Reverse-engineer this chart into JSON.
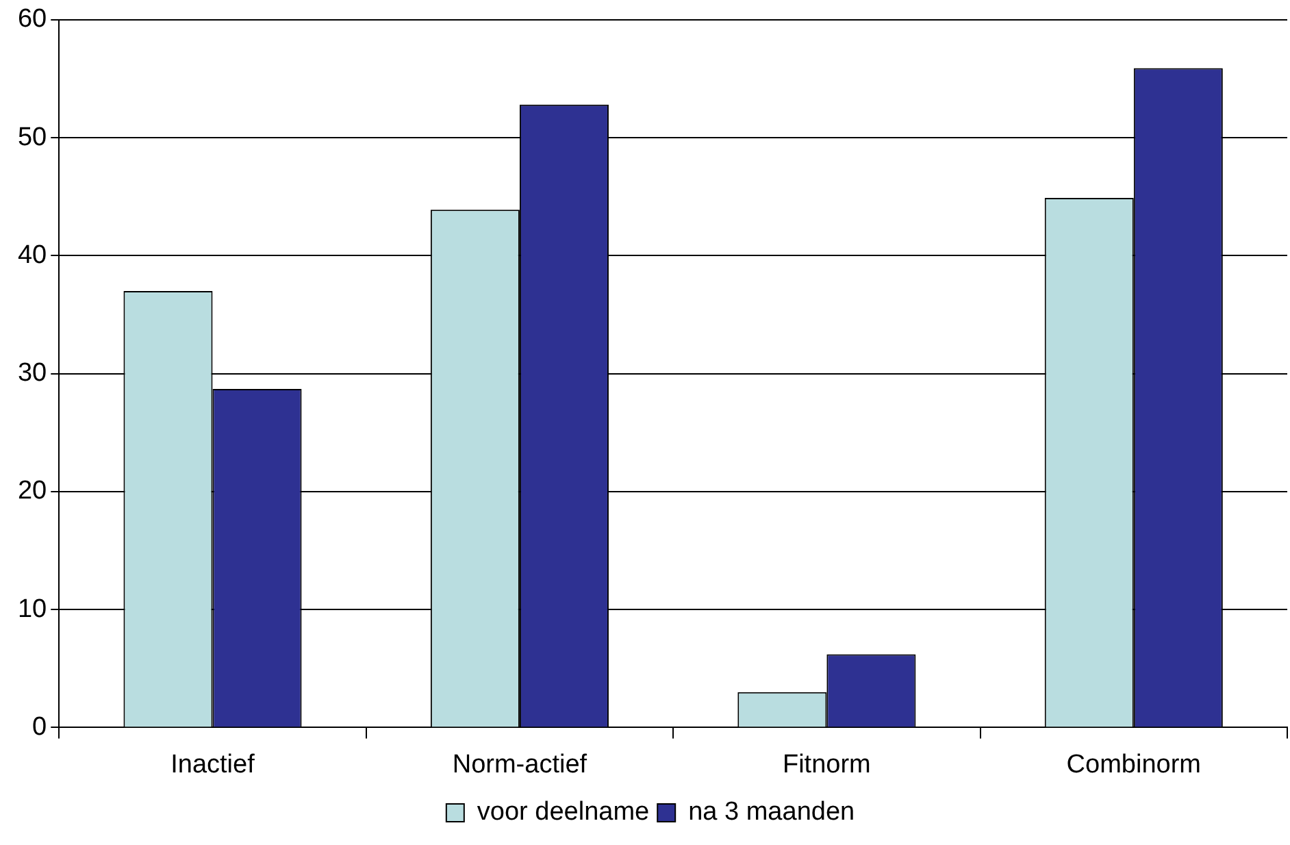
{
  "chart_data": {
    "type": "bar",
    "categories": [
      "Inactief",
      "Norm-actief",
      "Fitnorm",
      "Combinorm"
    ],
    "series": [
      {
        "name": "voor deelname",
        "color": "#b9dde0",
        "values": [
          37,
          43.9,
          3,
          44.9
        ]
      },
      {
        "name": "na 3 maanden",
        "color": "#2e3192",
        "values": [
          28.7,
          52.8,
          6.2,
          55.9
        ]
      }
    ],
    "ylim": [
      0,
      60
    ],
    "yticks": [
      0,
      10,
      20,
      30,
      40,
      50,
      60
    ],
    "grid": "y",
    "legend": "bottom"
  }
}
